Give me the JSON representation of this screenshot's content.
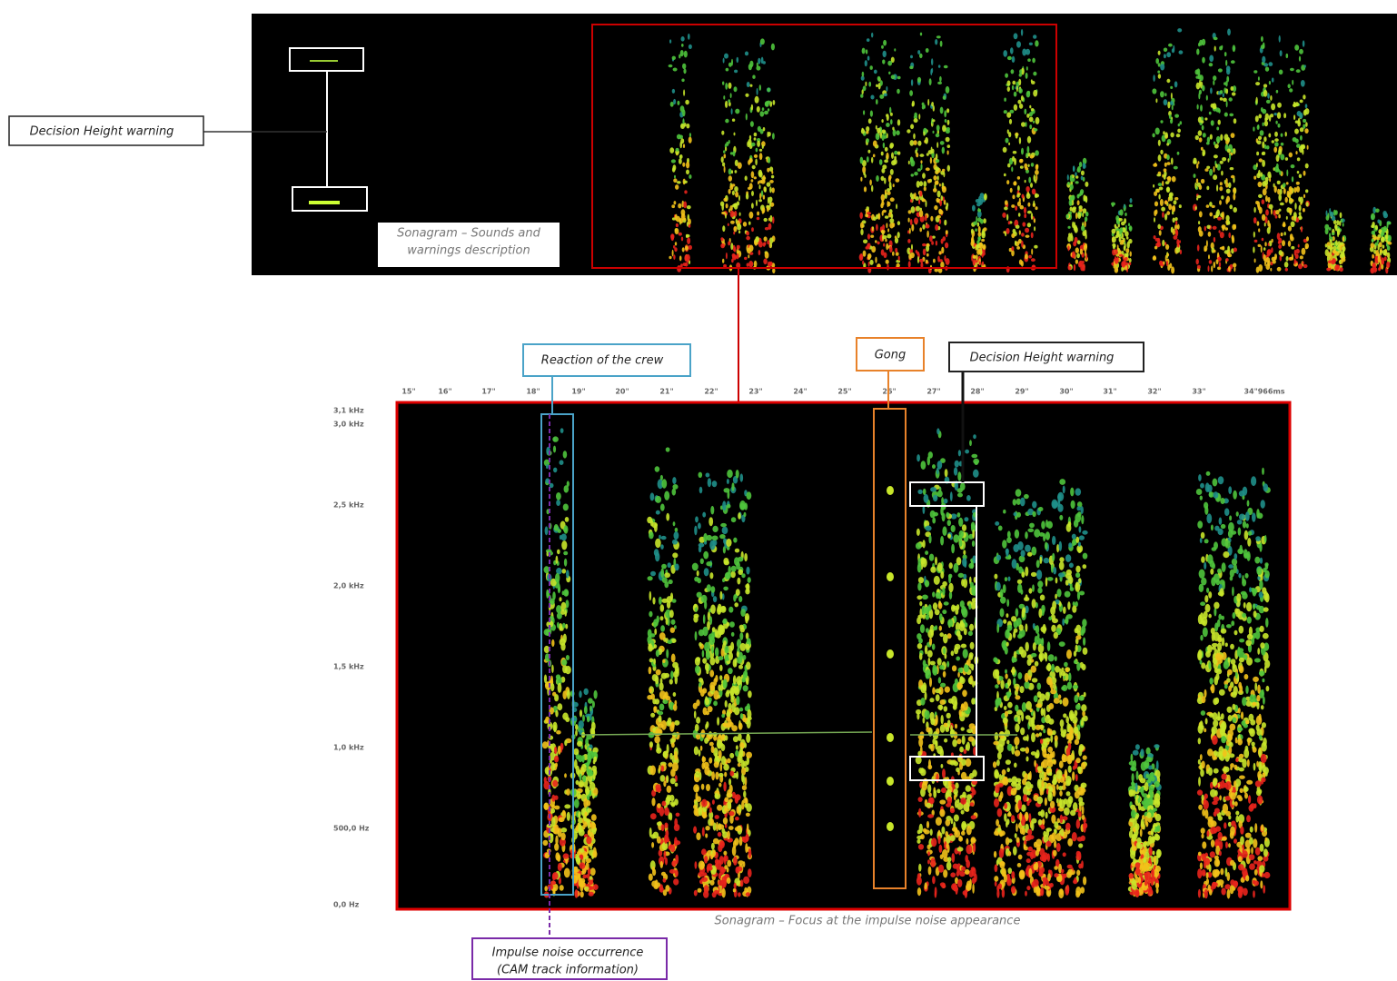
{
  "top_panel": {
    "label": "Decision Height warning",
    "caption": [
      "Sonagram – Sounds and",
      "warnings description"
    ]
  },
  "bottom_panel": {
    "time_ticks": [
      "15\"",
      "16\"",
      "17\"",
      "18\"",
      "19\"",
      "20\"",
      "21\"",
      "22\"",
      "23\"",
      "24\"",
      "25\"",
      "26\"",
      "27\"",
      "28\"",
      "29\"",
      "30\"",
      "31\"",
      "32\"",
      "33\"",
      "34\"966ms"
    ],
    "frequency_ticks": [
      "3,1 kHz",
      "3,0 kHz",
      "2,5 kHz",
      "2,0 kHz",
      "1,5 kHz",
      "1,0 kHz",
      "500,0 Hz",
      "0,0 Hz"
    ],
    "caption": "Sonagram – Focus at the impulse noise appearance",
    "annotations": {
      "crew": "Reaction of the crew",
      "gong": "Gong",
      "decision_height": "Decision Height warning",
      "impulse": [
        "Impulse noise occurrence",
        "(CAM track information)"
      ]
    }
  }
}
